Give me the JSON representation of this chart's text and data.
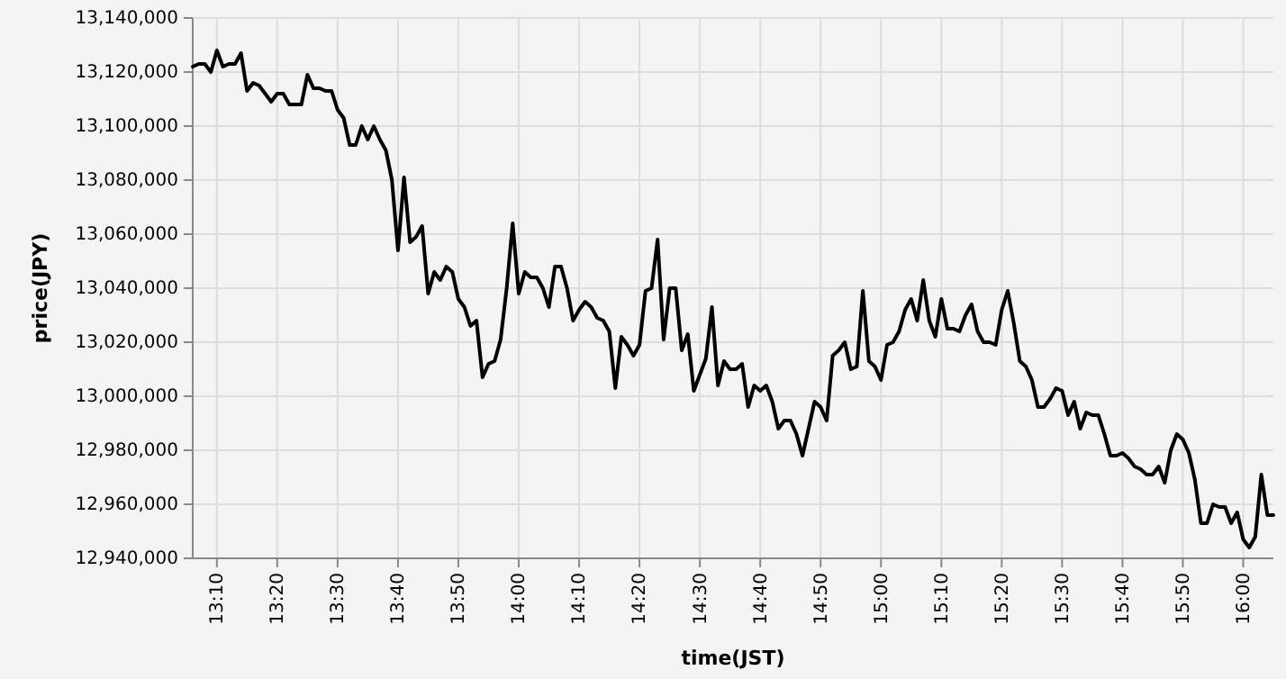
{
  "chart_data": {
    "type": "line",
    "xlabel": "time(JST)",
    "ylabel": "price(JPY)",
    "x": [
      13.1,
      13.1167,
      13.1333,
      13.15,
      13.1667,
      13.1833,
      13.2,
      13.2167,
      13.2333,
      13.25,
      13.2667,
      13.2833,
      13.3,
      13.3167,
      13.3333,
      13.35,
      13.3667,
      13.3833,
      13.4,
      13.4167,
      13.4333,
      13.45,
      13.4667,
      13.4833,
      13.5,
      13.5167,
      13.5333,
      13.55,
      13.5667,
      13.5833,
      13.6,
      13.6167,
      13.6333,
      13.65,
      13.6667,
      13.6833,
      13.7,
      13.7167,
      13.7333,
      13.75,
      13.7667,
      13.7833,
      13.8,
      13.8167,
      13.8333,
      13.85,
      13.8667,
      13.8833,
      13.9,
      13.9167,
      13.9333,
      13.95,
      13.9667,
      13.9833,
      14,
      14.0167,
      14.0333,
      14.05,
      14.0667,
      14.0833,
      14.1,
      14.1167,
      14.1333,
      14.15,
      14.1667,
      14.1833,
      14.2,
      14.2167,
      14.2333,
      14.25,
      14.2667,
      14.2833,
      14.3,
      14.3167,
      14.3333,
      14.35,
      14.3667,
      14.3833,
      14.4,
      14.4167,
      14.4333,
      14.45,
      14.4667,
      14.4833,
      14.5,
      14.5167,
      14.5333,
      14.55,
      14.5667,
      14.5833,
      14.6,
      14.6167,
      14.6333,
      14.65,
      14.6667,
      14.6833,
      14.7,
      14.7167,
      14.7333,
      14.75,
      14.7667,
      14.7833,
      14.8,
      14.8167,
      14.8333,
      14.85,
      14.8667,
      14.8833,
      14.9,
      14.9167,
      14.9333,
      14.95,
      14.9667,
      14.9833,
      15,
      15.0167,
      15.0333,
      15.05,
      15.0667,
      15.0833,
      15.1,
      15.1167,
      15.1333,
      15.15,
      15.1667,
      15.1833,
      15.2,
      15.2167,
      15.2333,
      15.25,
      15.2667,
      15.2833,
      15.3,
      15.3167,
      15.3333,
      15.35,
      15.3667,
      15.3833,
      15.4,
      15.4167,
      15.4333,
      15.45,
      15.4667,
      15.4833,
      15.5,
      15.5167,
      15.5333,
      15.55,
      15.5667,
      15.5833,
      15.6,
      15.6167,
      15.6333,
      15.65,
      15.6667,
      15.6833,
      15.7,
      15.7167,
      15.7333,
      15.75,
      15.7667,
      15.7833,
      15.8,
      15.8167,
      15.8333,
      15.85,
      15.8667,
      15.8833,
      15.9,
      15.9167,
      15.9333,
      15.95,
      15.9667,
      15.9833,
      16,
      16.0167,
      16.0333,
      16.05,
      16.0667,
      16.0833
    ],
    "series": [
      {
        "color": "#000000",
        "values": [
          13122000,
          13123000,
          13123000,
          13120000,
          13128000,
          13122000,
          13123000,
          13123000,
          13127000,
          13113000,
          13116000,
          13115000,
          13112000,
          13109000,
          13112000,
          13112000,
          13108000,
          13108000,
          13108000,
          13119000,
          13114000,
          13114000,
          13113000,
          13113000,
          13106000,
          13103000,
          13093000,
          13093000,
          13100000,
          13095000,
          13100000,
          13095000,
          13091000,
          13080000,
          13054000,
          13081000,
          13057000,
          13059000,
          13063000,
          13038000,
          13046000,
          13043000,
          13048000,
          13046000,
          13036000,
          13033000,
          13026000,
          13028000,
          13007000,
          13012000,
          13013000,
          13021000,
          13040000,
          13064000,
          13038000,
          13046000,
          13044000,
          13044000,
          13040000,
          13033000,
          13048000,
          13048000,
          13040000,
          13028000,
          13032000,
          13035000,
          13033000,
          13029000,
          13028000,
          13024000,
          13003000,
          13022000,
          13019000,
          13015000,
          13019000,
          13039000,
          13040000,
          13058000,
          13021000,
          13040000,
          13040000,
          13017000,
          13023000,
          13002000,
          13008000,
          13014000,
          13033000,
          13004000,
          13013000,
          13010000,
          13010000,
          13012000,
          12996000,
          13004000,
          13002000,
          13004000,
          12998000,
          12988000,
          12991000,
          12991000,
          12986000,
          12978000,
          12988000,
          12998000,
          12996000,
          12991000,
          13015000,
          13017000,
          13020000,
          13010000,
          13011000,
          13039000,
          13013000,
          13011000,
          13006000,
          13019000,
          13020000,
          13024000,
          13032000,
          13036000,
          13028000,
          13043000,
          13028000,
          13022000,
          13036000,
          13025000,
          13025000,
          13024000,
          13030000,
          13034000,
          13024000,
          13020000,
          13020000,
          13019000,
          13032000,
          13039000,
          13027000,
          13013000,
          13011000,
          13006000,
          12996000,
          12996000,
          12999000,
          13003000,
          13002000,
          12993000,
          12998000,
          12988000,
          12994000,
          12993000,
          12993000,
          12986000,
          12978000,
          12978000,
          12979000,
          12977000,
          12974000,
          12973000,
          12971000,
          12971000,
          12974000,
          12968000,
          12980000,
          12986000,
          12984000,
          12979000,
          12969000,
          12953000,
          12953000,
          12960000,
          12959000,
          12959000,
          12953000,
          12957000,
          12947000,
          12944000,
          12948000,
          12971000,
          12956000,
          12956000
        ]
      }
    ],
    "xlim": [
      13.1,
      16.0833
    ],
    "ylim": [
      12940000,
      13140000
    ],
    "xticks": [
      {
        "value": 13.1667,
        "label": "13:10"
      },
      {
        "value": 13.3333,
        "label": "13:20"
      },
      {
        "value": 13.5,
        "label": "13:30"
      },
      {
        "value": 13.6667,
        "label": "13:40"
      },
      {
        "value": 13.8333,
        "label": "13:50"
      },
      {
        "value": 14,
        "label": "14:00"
      },
      {
        "value": 14.1667,
        "label": "14:10"
      },
      {
        "value": 14.3333,
        "label": "14:20"
      },
      {
        "value": 14.5,
        "label": "14:30"
      },
      {
        "value": 14.6667,
        "label": "14:40"
      },
      {
        "value": 14.8333,
        "label": "14:50"
      },
      {
        "value": 15,
        "label": "15:00"
      },
      {
        "value": 15.1667,
        "label": "15:10"
      },
      {
        "value": 15.3333,
        "label": "15:20"
      },
      {
        "value": 15.5,
        "label": "15:30"
      },
      {
        "value": 15.6667,
        "label": "15:40"
      },
      {
        "value": 15.8333,
        "label": "15:50"
      },
      {
        "value": 16,
        "label": "16:00"
      }
    ],
    "yticks": [
      {
        "value": 12940000,
        "label": "12,940,000"
      },
      {
        "value": 12960000,
        "label": "12,960,000"
      },
      {
        "value": 12980000,
        "label": "12,980,000"
      },
      {
        "value": 13000000,
        "label": "13,000,000"
      },
      {
        "value": 13020000,
        "label": "13,020,000"
      },
      {
        "value": 13040000,
        "label": "13,040,000"
      },
      {
        "value": 13060000,
        "label": "13,060,000"
      },
      {
        "value": 13080000,
        "label": "13,080,000"
      },
      {
        "value": 13100000,
        "label": "13,100,000"
      },
      {
        "value": 13120000,
        "label": "13,120,000"
      },
      {
        "value": 13140000,
        "label": "13,140,000"
      }
    ],
    "grid": true
  }
}
